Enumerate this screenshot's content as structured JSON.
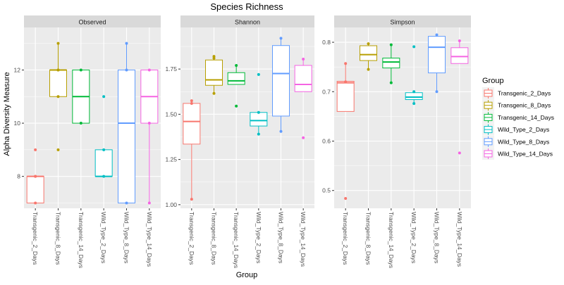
{
  "chart_data": {
    "type": "box",
    "title": "Species Richness",
    "xlabel": "Group",
    "ylabel": "Alpha Diversity Measure",
    "legend": {
      "title": "Group",
      "placement": "right",
      "entries": [
        "Transgenic_2_Days",
        "Transgenic_8_Days",
        "Transgenic_14_Days",
        "Wild_Type_2_Days",
        "Wild_Type_8_Days",
        "Wild_Type_14_Days"
      ]
    },
    "colors": {
      "Transgenic_2_Days": "#F8766D",
      "Transgenic_8_Days": "#B79F00",
      "Transgenic_14_Days": "#00BA38",
      "Wild_Type_2_Days": "#00BFC4",
      "Wild_Type_8_Days": "#619CFF",
      "Wild_Type_14_Days": "#F564E3"
    },
    "categories": [
      "Transgenic_2_Days",
      "Transgenic_8_Days",
      "Transgenic_14_Days",
      "Wild_Type_2_Days",
      "Wild_Type_8_Days",
      "Wild_Type_14_Days"
    ],
    "grid": true,
    "facets": [
      {
        "name": "Observed",
        "ylim": [
          6.8,
          13.6
        ],
        "yticks": [
          8,
          10,
          12
        ],
        "ytick_labels": [
          "8",
          "10",
          "12"
        ],
        "boxes": [
          {
            "min": 7,
            "q1": 7,
            "median": 8,
            "q3": 8,
            "max": 8,
            "points": [
              7,
              8,
              9,
              8
            ]
          },
          {
            "min": 11,
            "q1": 11,
            "median": 12,
            "q3": 12,
            "max": 13,
            "points": [
              13,
              12,
              11,
              9,
              12
            ]
          },
          {
            "min": 10,
            "q1": 10,
            "median": 11,
            "q3": 12,
            "max": 12,
            "points": [
              12,
              10
            ]
          },
          {
            "min": 8,
            "q1": 8,
            "median": 8,
            "q3": 9,
            "max": 9,
            "points": [
              11,
              9,
              8
            ]
          },
          {
            "min": 7,
            "q1": 7,
            "median": 10,
            "q3": 12,
            "max": 13,
            "points": [
              13,
              12,
              7
            ]
          },
          {
            "min": 7,
            "q1": 10,
            "median": 11,
            "q3": 12,
            "max": 12,
            "points": [
              12,
              10,
              7
            ]
          }
        ]
      },
      {
        "name": "Shannon",
        "ylim": [
          0.98,
          1.98
        ],
        "yticks": [
          1.0,
          1.25,
          1.5,
          1.75
        ],
        "ytick_labels": [
          "1.00",
          "1.25",
          "1.50",
          "1.75"
        ],
        "boxes": [
          {
            "min": 1.03,
            "q1": 1.335,
            "median": 1.46,
            "q3": 1.56,
            "max": 1.575,
            "points": [
              1.575,
              1.56,
              1.03
            ]
          },
          {
            "min": 1.615,
            "q1": 1.66,
            "median": 1.69,
            "q3": 1.8,
            "max": 1.82,
            "points": [
              1.82,
              1.81,
              1.615
            ]
          },
          {
            "min": 1.665,
            "q1": 1.665,
            "median": 1.685,
            "q3": 1.73,
            "max": 1.77,
            "points": [
              1.77,
              1.545
            ]
          },
          {
            "min": 1.39,
            "q1": 1.435,
            "median": 1.465,
            "q3": 1.51,
            "max": 1.515,
            "points": [
              1.72,
              1.51,
              1.39
            ]
          },
          {
            "min": 1.405,
            "q1": 1.49,
            "median": 1.725,
            "q3": 1.88,
            "max": 1.92,
            "points": [
              1.92,
              1.405
            ]
          },
          {
            "min": 1.625,
            "q1": 1.625,
            "median": 1.665,
            "q3": 1.77,
            "max": 1.805,
            "points": [
              1.805,
              1.37
            ]
          }
        ]
      },
      {
        "name": "Simpson",
        "ylim": [
          0.464,
          0.83
        ],
        "yticks": [
          0.5,
          0.6,
          0.7,
          0.8
        ],
        "ytick_labels": [
          "0.5",
          "0.6",
          "0.7",
          "0.8"
        ],
        "boxes": [
          {
            "min": 0.66,
            "q1": 0.66,
            "median": 0.718,
            "q3": 0.721,
            "max": 0.757,
            "points": [
              0.757,
              0.72,
              0.484
            ]
          },
          {
            "min": 0.745,
            "q1": 0.763,
            "median": 0.775,
            "q3": 0.793,
            "max": 0.797,
            "points": [
              0.797,
              0.745
            ]
          },
          {
            "min": 0.718,
            "q1": 0.748,
            "median": 0.76,
            "q3": 0.768,
            "max": 0.795,
            "points": [
              0.795,
              0.718
            ]
          },
          {
            "min": 0.676,
            "q1": 0.684,
            "median": 0.689,
            "q3": 0.698,
            "max": 0.7,
            "points": [
              0.791,
              0.7,
              0.676
            ]
          },
          {
            "min": 0.7,
            "q1": 0.738,
            "median": 0.79,
            "q3": 0.812,
            "max": 0.815,
            "points": [
              0.815,
              0.7
            ]
          },
          {
            "min": 0.757,
            "q1": 0.757,
            "median": 0.771,
            "q3": 0.789,
            "max": 0.803,
            "points": [
              0.803,
              0.576
            ]
          }
        ]
      }
    ]
  }
}
